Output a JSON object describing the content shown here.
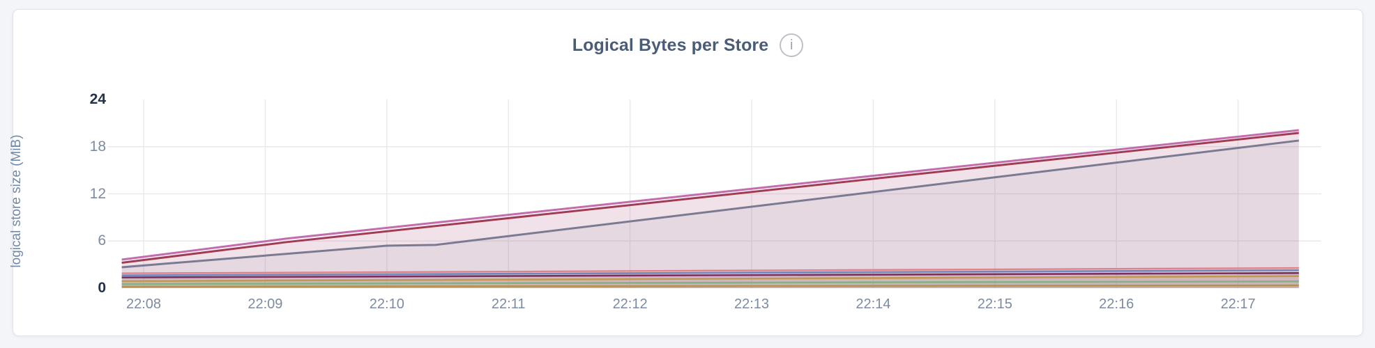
{
  "page": {
    "background": "#f4f5f9"
  },
  "card": {
    "background": "#ffffff",
    "border_color": "#e3e4e8"
  },
  "header": {
    "title": "Logical Bytes per Store",
    "title_color": "#4b5c76",
    "info_icon": {
      "glyph": "i",
      "color": "#9ba1aa",
      "border_color": "#bdc1c8"
    }
  },
  "chart_data": {
    "type": "area",
    "title": "Logical Bytes per Store",
    "ylabel": "logical store size (MiB)",
    "ylim": [
      0,
      24
    ],
    "yticks": [
      {
        "value": 0,
        "label": "0",
        "bold": true
      },
      {
        "value": 6,
        "label": "6",
        "bold": false
      },
      {
        "value": 12,
        "label": "12",
        "bold": false
      },
      {
        "value": 18,
        "label": "18",
        "bold": false
      },
      {
        "value": 24,
        "label": "24",
        "bold": true
      }
    ],
    "xticks": [
      "22:08",
      "22:09",
      "22:10",
      "22:11",
      "22:12",
      "22:13",
      "22:14",
      "22:15",
      "22:16",
      "22:17"
    ],
    "x_window_minutes": [
      -0.18,
      9.5
    ],
    "grid": {
      "horizontal_values": [
        6,
        12,
        18
      ],
      "vertical_at_each_xtick": true,
      "color": "#e9e9ed"
    },
    "legend": "none",
    "axis_label_color": "#7c8ba0",
    "axis_label_bold_color": "#233249",
    "fill_opacity": 0.09,
    "series": [
      {
        "name": "pink",
        "color": "#c46dad",
        "width": 3.0,
        "points": [
          [
            -0.18,
            3.63
          ],
          [
            1.17,
            6.3
          ],
          [
            9.5,
            20.1
          ]
        ]
      },
      {
        "name": "dark-red",
        "color": "#a03d55",
        "width": 3.0,
        "points": [
          [
            -0.18,
            3.23
          ],
          [
            1.17,
            5.85
          ],
          [
            9.5,
            19.75
          ]
        ]
      },
      {
        "name": "slate",
        "color": "#7b7a93",
        "width": 3.0,
        "points": [
          [
            -0.18,
            2.66
          ],
          [
            2.0,
            5.4
          ],
          [
            2.4,
            5.5
          ],
          [
            9.5,
            18.78
          ]
        ]
      },
      {
        "name": "salmon",
        "color": "#e0808a",
        "width": 2.3,
        "points": [
          [
            -0.18,
            1.89
          ],
          [
            9.5,
            2.57
          ]
        ]
      },
      {
        "name": "blue",
        "color": "#7287b8",
        "width": 2.6,
        "points": [
          [
            -0.18,
            1.62
          ],
          [
            9.5,
            2.28
          ]
        ]
      },
      {
        "name": "plum",
        "color": "#7d2e5e",
        "width": 2.6,
        "points": [
          [
            -0.18,
            1.36
          ],
          [
            9.5,
            1.92
          ]
        ]
      },
      {
        "name": "gold",
        "color": "#c0984f",
        "width": 2.6,
        "points": [
          [
            -0.18,
            0.89
          ],
          [
            6.3,
            1.3
          ],
          [
            9.5,
            1.53
          ]
        ]
      },
      {
        "name": "green",
        "color": "#83b284",
        "width": 2.6,
        "points": [
          [
            -0.18,
            0.53
          ],
          [
            9.5,
            0.86
          ]
        ]
      },
      {
        "name": "bronze",
        "color": "#b8914d",
        "width": 2.6,
        "points": [
          [
            -0.18,
            0.18
          ],
          [
            9.5,
            0.35
          ]
        ]
      }
    ]
  }
}
